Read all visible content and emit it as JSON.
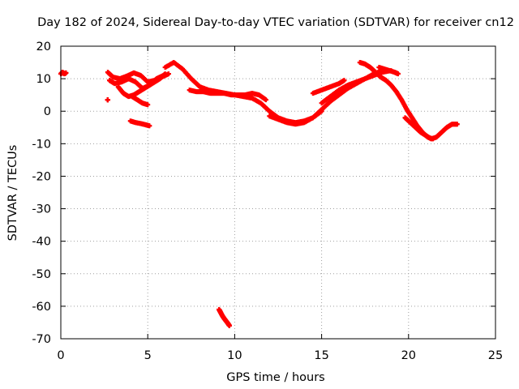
{
  "chart_data": {
    "type": "scatter",
    "title": "Day 182 of 2024, Sidereal Day-to-day VTEC variation (SDTVAR) for receiver cn12",
    "xlabel": "GPS time / hours",
    "ylabel": "SDTVAR / TECUs",
    "xlim": [
      0,
      25
    ],
    "ylim": [
      -70,
      20
    ],
    "x_ticks": [
      0,
      5,
      10,
      15,
      20,
      25
    ],
    "y_ticks": [
      20,
      10,
      0,
      -10,
      -20,
      -30,
      -40,
      -50,
      -60,
      -70
    ],
    "grid": true,
    "marker": "+",
    "color": "#ff0000",
    "series": [
      {
        "name": "arc-a",
        "x": [
          0.0,
          0.1,
          0.2,
          0.3
        ],
        "y": [
          11.5,
          12.0,
          11.5,
          11.8
        ]
      },
      {
        "name": "arc-b",
        "x": [
          2.7,
          2.7
        ],
        "y": [
          3.5,
          3.5
        ]
      },
      {
        "name": "arc-c",
        "x": [
          2.7,
          3.0,
          3.4,
          3.8,
          4.2,
          4.6,
          5.0,
          5.4,
          5.8,
          6.2
        ],
        "y": [
          12.0,
          10.5,
          10.0,
          10.8,
          11.8,
          11.0,
          9.0,
          9.5,
          10.5,
          11.5
        ]
      },
      {
        "name": "arc-d",
        "x": [
          2.8,
          3.1,
          3.5,
          3.9,
          4.3,
          4.7,
          5.1,
          5.5,
          5.9
        ],
        "y": [
          9.5,
          8.5,
          9.0,
          10.0,
          9.0,
          7.0,
          8.0,
          10.0,
          11.0
        ]
      },
      {
        "name": "arc-e",
        "x": [
          3.3,
          3.6,
          3.9,
          4.2,
          4.5,
          4.8,
          5.1,
          5.4,
          5.7,
          6.0
        ],
        "y": [
          7.5,
          5.5,
          4.5,
          5.0,
          6.0,
          7.0,
          8.0,
          9.0,
          10.0,
          11.5
        ]
      },
      {
        "name": "arc-f",
        "x": [
          4.1,
          4.4,
          4.7,
          5.0
        ],
        "y": [
          4.5,
          3.5,
          2.5,
          2.0
        ]
      },
      {
        "name": "arc-g",
        "x": [
          4.0,
          4.3,
          4.6,
          4.9,
          5.1
        ],
        "y": [
          -3.0,
          -3.5,
          -3.8,
          -4.2,
          -4.5
        ]
      },
      {
        "name": "arc-h",
        "x": [
          6.0,
          6.5,
          7.0,
          7.5,
          8.0,
          8.5,
          9.0,
          9.5,
          10.0,
          10.5,
          11.0,
          11.5,
          12.0,
          12.5,
          13.0,
          13.5,
          14.0,
          14.5,
          15.0
        ],
        "y": [
          13.5,
          15.0,
          13.0,
          10.0,
          7.5,
          6.5,
          6.0,
          5.5,
          5.0,
          4.5,
          4.0,
          2.5,
          0.0,
          -2.0,
          -3.0,
          -3.5,
          -3.0,
          -2.0,
          0.0
        ]
      },
      {
        "name": "arc-i",
        "x": [
          7.4,
          7.8,
          8.2,
          8.6,
          9.0,
          9.4,
          9.8,
          10.2,
          10.6,
          11.0,
          11.4,
          11.8
        ],
        "y": [
          6.5,
          6.0,
          6.0,
          5.5,
          5.5,
          5.5,
          5.0,
          5.0,
          5.0,
          5.5,
          5.0,
          3.5
        ]
      },
      {
        "name": "arc-j",
        "x": [
          12.0,
          12.5,
          13.0,
          13.5,
          14.0,
          14.5,
          15.0,
          15.5,
          16.0,
          16.5,
          17.0,
          17.5,
          18.0,
          18.5
        ],
        "y": [
          -1.5,
          -2.5,
          -3.5,
          -4.0,
          -3.5,
          -2.0,
          0.5,
          3.0,
          5.0,
          7.0,
          8.5,
          10.0,
          11.5,
          12.5
        ]
      },
      {
        "name": "arc-k",
        "x": [
          14.5,
          15.0,
          15.5,
          16.0,
          16.3
        ],
        "y": [
          5.5,
          6.5,
          7.5,
          8.5,
          9.5
        ]
      },
      {
        "name": "arc-l",
        "x": [
          15.0,
          15.5,
          16.0,
          16.5,
          17.0,
          17.5,
          18.0,
          18.5,
          19.0
        ],
        "y": [
          2.5,
          4.5,
          6.5,
          8.0,
          9.0,
          10.0,
          11.0,
          12.0,
          12.5
        ]
      },
      {
        "name": "arc-m",
        "x": [
          17.2,
          17.5,
          17.8,
          18.1,
          18.4,
          18.7,
          19.0,
          19.3,
          19.6,
          19.9,
          20.2,
          20.5,
          20.8,
          21.1,
          21.4
        ],
        "y": [
          15.0,
          14.5,
          13.5,
          12.0,
          10.5,
          9.5,
          8.0,
          6.0,
          3.5,
          0.5,
          -2.0,
          -4.5,
          -6.5,
          -8.0,
          -8.5
        ]
      },
      {
        "name": "arc-n",
        "x": [
          18.3,
          18.6,
          18.9,
          19.2,
          19.4
        ],
        "y": [
          13.5,
          13.0,
          12.5,
          12.0,
          11.5
        ]
      },
      {
        "name": "arc-o",
        "x": [
          19.8,
          20.1,
          20.4,
          20.7,
          21.0,
          21.3,
          21.6,
          21.9,
          22.2,
          22.5,
          22.8
        ],
        "y": [
          -2.0,
          -3.5,
          -5.0,
          -6.5,
          -7.5,
          -8.5,
          -8.0,
          -6.5,
          -5.0,
          -4.0,
          -4.0
        ]
      },
      {
        "name": "arc-p",
        "x": [
          9.1,
          9.2,
          9.3,
          9.4,
          9.5,
          9.6,
          9.7
        ],
        "y": [
          -61.0,
          -62.0,
          -63.0,
          -63.8,
          -64.5,
          -65.2,
          -66.0
        ]
      }
    ]
  }
}
